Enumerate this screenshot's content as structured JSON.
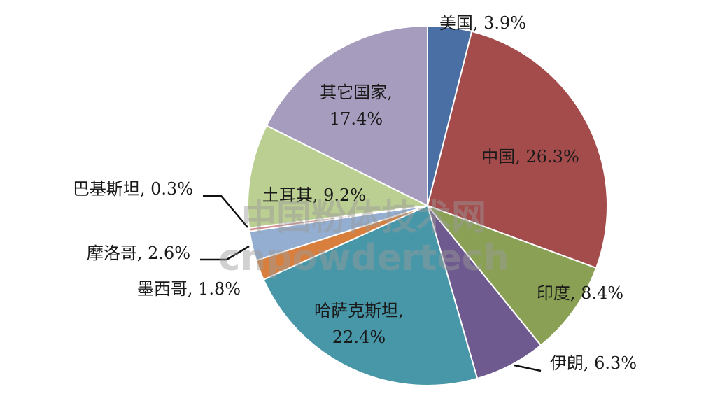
{
  "chart_data": {
    "type": "pie",
    "title": "",
    "slices": [
      {
        "label": "美国",
        "value": 3.9,
        "display": "美国, 3.9%",
        "color": "#4a6fa5"
      },
      {
        "label": "中国",
        "value": 26.3,
        "display": "中国, 26.3%",
        "color": "#a44b4b"
      },
      {
        "label": "印度",
        "value": 8.4,
        "display": "印度, 8.4%",
        "color": "#8aa155"
      },
      {
        "label": "伊朗",
        "value": 6.3,
        "display": "伊朗, 6.3%",
        "color": "#6e5a8e"
      },
      {
        "label": "哈萨克斯坦",
        "value": 22.4,
        "display": "哈萨克斯坦,|22.4%",
        "color": "#4797a8"
      },
      {
        "label": "墨西哥",
        "value": 1.8,
        "display": "墨西哥, 1.8%",
        "color": "#d97f3d"
      },
      {
        "label": "摩洛哥",
        "value": 2.6,
        "display": "摩洛哥, 2.6%",
        "color": "#94aed1"
      },
      {
        "label": "巴基斯坦",
        "value": 0.3,
        "display": "巴基斯坦, 0.3%",
        "color": "#d7908f"
      },
      {
        "label": "土耳其",
        "value": 9.2,
        "display": "土耳其, 9.2%",
        "color": "#bccf93"
      },
      {
        "label": "其它国家",
        "value": 17.4,
        "display": "其它国家,|17.4%",
        "color": "#a69cbd"
      }
    ]
  },
  "watermark": {
    "line1": "中国粉体技术网",
    "line2": "cnpowdertech"
  }
}
